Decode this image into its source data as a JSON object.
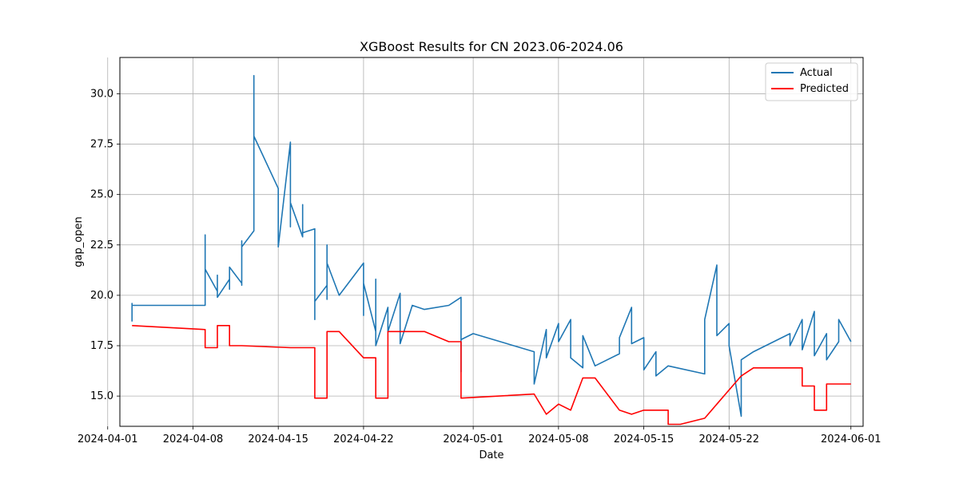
{
  "chart_data": {
    "type": "line",
    "title": "XGBoost Results for CN 2023.06-2024.06",
    "xlabel": "Date",
    "ylabel": "gap_open",
    "xlim": [
      "2024-04-02",
      "2024-06-02"
    ],
    "ylim": [
      13.5,
      31.8
    ],
    "x_ticks": [
      "2024-04-01",
      "2024-04-08",
      "2024-04-15",
      "2024-04-22",
      "2024-05-01",
      "2024-05-08",
      "2024-05-15",
      "2024-05-22",
      "2024-06-01"
    ],
    "y_ticks": [
      15.0,
      17.5,
      20.0,
      22.5,
      25.0,
      27.5,
      30.0
    ],
    "grid": true,
    "legend_position": "top-right",
    "colors": {
      "Actual": "#1f77b4",
      "Predicted": "#ff0000"
    },
    "series": [
      {
        "name": "Actual",
        "x": [
          "2024-04-03",
          "2024-04-03",
          "2024-04-03",
          "2024-04-09",
          "2024-04-09",
          "2024-04-09",
          "2024-04-09",
          "2024-04-10",
          "2024-04-10",
          "2024-04-10",
          "2024-04-11",
          "2024-04-11",
          "2024-04-11",
          "2024-04-12",
          "2024-04-12",
          "2024-04-12",
          "2024-04-12",
          "2024-04-12",
          "2024-04-13",
          "2024-04-13",
          "2024-04-13",
          "2024-04-13",
          "2024-04-15",
          "2024-04-15",
          "2024-04-16",
          "2024-04-16",
          "2024-04-16",
          "2024-04-16",
          "2024-04-17",
          "2024-04-17",
          "2024-04-17",
          "2024-04-18",
          "2024-04-18",
          "2024-04-18",
          "2024-04-18",
          "2024-04-19",
          "2024-04-19",
          "2024-04-19",
          "2024-04-19",
          "2024-04-20",
          "2024-04-22",
          "2024-04-22",
          "2024-04-22",
          "2024-04-23",
          "2024-04-23",
          "2024-04-23",
          "2024-04-24",
          "2024-04-24",
          "2024-04-25",
          "2024-04-25",
          "2024-04-26",
          "2024-04-27",
          "2024-04-29",
          "2024-04-30",
          "2024-04-30",
          "2024-04-30",
          "2024-05-01",
          "2024-05-06",
          "2024-05-06",
          "2024-05-07",
          "2024-05-07",
          "2024-05-08",
          "2024-05-08",
          "2024-05-09",
          "2024-05-09",
          "2024-05-10",
          "2024-05-10",
          "2024-05-11",
          "2024-05-13",
          "2024-05-13",
          "2024-05-14",
          "2024-05-14",
          "2024-05-15",
          "2024-05-15",
          "2024-05-16",
          "2024-05-16",
          "2024-05-17",
          "2024-05-20",
          "2024-05-20",
          "2024-05-21",
          "2024-05-21",
          "2024-05-22",
          "2024-05-22",
          "2024-05-23",
          "2024-05-23",
          "2024-05-24",
          "2024-05-27",
          "2024-05-27",
          "2024-05-28",
          "2024-05-28",
          "2024-05-29",
          "2024-05-29",
          "2024-05-30",
          "2024-05-30",
          "2024-05-31",
          "2024-05-31",
          "2024-06-01"
        ],
        "y": [
          18.7,
          19.6,
          19.5,
          19.5,
          21.0,
          23.0,
          21.3,
          20.2,
          21.0,
          19.9,
          20.8,
          20.3,
          21.4,
          20.6,
          21.8,
          20.5,
          22.7,
          22.4,
          23.2,
          30.9,
          28.0,
          27.9,
          25.3,
          22.4,
          27.6,
          24.8,
          23.4,
          24.6,
          22.9,
          24.5,
          23.1,
          23.3,
          18.8,
          20.6,
          19.7,
          20.5,
          22.5,
          19.8,
          21.6,
          20.0,
          21.6,
          19.0,
          20.6,
          18.2,
          20.8,
          17.5,
          19.4,
          18.2,
          20.1,
          17.6,
          19.5,
          19.3,
          19.5,
          19.9,
          16.2,
          17.8,
          18.1,
          17.2,
          15.6,
          18.3,
          16.9,
          18.6,
          17.7,
          18.8,
          16.9,
          16.4,
          18.0,
          16.5,
          17.1,
          17.9,
          19.4,
          17.6,
          17.9,
          16.3,
          17.2,
          16.0,
          16.5,
          16.1,
          18.8,
          21.5,
          18.0,
          18.6,
          17.5,
          14.0,
          16.8,
          17.2,
          18.1,
          17.5,
          18.8,
          17.3,
          19.2,
          17.0,
          18.1,
          16.8,
          17.7,
          18.8,
          17.7
        ]
      },
      {
        "name": "Predicted",
        "x": [
          "2024-04-03",
          "2024-04-09",
          "2024-04-09",
          "2024-04-10",
          "2024-04-10",
          "2024-04-11",
          "2024-04-11",
          "2024-04-12",
          "2024-04-12",
          "2024-04-16",
          "2024-04-16",
          "2024-04-18",
          "2024-04-18",
          "2024-04-19",
          "2024-04-19",
          "2024-04-20",
          "2024-04-20",
          "2024-04-22",
          "2024-04-22",
          "2024-04-23",
          "2024-04-23",
          "2024-04-24",
          "2024-04-24",
          "2024-04-27",
          "2024-04-27",
          "2024-04-29",
          "2024-04-29",
          "2024-04-30",
          "2024-04-30",
          "2024-05-06",
          "2024-05-06",
          "2024-05-07",
          "2024-05-07",
          "2024-05-08",
          "2024-05-08",
          "2024-05-09",
          "2024-05-09",
          "2024-05-10",
          "2024-05-10",
          "2024-05-11",
          "2024-05-11",
          "2024-05-13",
          "2024-05-13",
          "2024-05-14",
          "2024-05-14",
          "2024-05-15",
          "2024-05-15",
          "2024-05-17",
          "2024-05-17",
          "2024-05-18",
          "2024-05-18",
          "2024-05-20",
          "2024-05-20",
          "2024-05-21",
          "2024-05-21",
          "2024-05-23",
          "2024-05-23",
          "2024-05-24",
          "2024-05-24",
          "2024-05-28",
          "2024-05-28",
          "2024-05-29",
          "2024-05-29",
          "2024-05-30",
          "2024-05-30",
          "2024-06-01"
        ],
        "y": [
          18.5,
          18.3,
          17.4,
          17.4,
          18.5,
          18.5,
          17.5,
          17.5,
          17.5,
          17.4,
          17.4,
          17.4,
          14.9,
          14.9,
          18.2,
          18.2,
          18.2,
          16.9,
          16.9,
          16.9,
          14.9,
          14.9,
          18.2,
          18.2,
          18.2,
          17.7,
          17.7,
          17.7,
          14.9,
          15.1,
          15.1,
          14.1,
          14.1,
          14.6,
          14.6,
          14.3,
          14.3,
          15.9,
          15.9,
          15.9,
          15.9,
          14.3,
          14.3,
          14.1,
          14.1,
          14.3,
          14.3,
          14.3,
          13.6,
          13.6,
          13.6,
          13.9,
          13.9,
          14.6,
          14.6,
          16.0,
          16.0,
          16.4,
          16.4,
          16.4,
          15.5,
          15.5,
          14.3,
          14.3,
          15.6,
          15.6
        ]
      }
    ]
  }
}
